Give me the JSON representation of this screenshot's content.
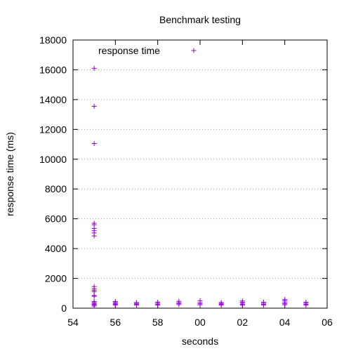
{
  "chart_data": {
    "type": "scatter",
    "title": "Benchmark testing",
    "xlabel": "seconds",
    "ylabel": "response time (ms)",
    "xlim": [
      54,
      66
    ],
    "ylim": [
      0,
      18000
    ],
    "x_ticks": [
      {
        "value": 54,
        "label": "54"
      },
      {
        "value": 56,
        "label": "56"
      },
      {
        "value": 58,
        "label": "58"
      },
      {
        "value": 60,
        "label": "00"
      },
      {
        "value": 62,
        "label": "02"
      },
      {
        "value": 64,
        "label": "04"
      },
      {
        "value": 66,
        "label": "06"
      }
    ],
    "y_ticks": [
      {
        "value": 0,
        "label": "0"
      },
      {
        "value": 2000,
        "label": "2000"
      },
      {
        "value": 4000,
        "label": "4000"
      },
      {
        "value": 6000,
        "label": "6000"
      },
      {
        "value": 8000,
        "label": "8000"
      },
      {
        "value": 10000,
        "label": "10000"
      },
      {
        "value": 12000,
        "label": "12000"
      },
      {
        "value": 14000,
        "label": "14000"
      },
      {
        "value": 16000,
        "label": "16000"
      },
      {
        "value": 18000,
        "label": "18000"
      }
    ],
    "grid": {
      "y": true,
      "x": false,
      "style": "dotted"
    },
    "legend_position": "top-left",
    "marker": "plus",
    "series": [
      {
        "name": "response time",
        "color": "#9400d3",
        "points": [
          {
            "x": 55,
            "y": 16100
          },
          {
            "x": 55,
            "y": 13550
          },
          {
            "x": 55,
            "y": 11050
          },
          {
            "x": 55,
            "y": 5700
          },
          {
            "x": 55,
            "y": 5600
          },
          {
            "x": 55,
            "y": 5350
          },
          {
            "x": 55,
            "y": 5200
          },
          {
            "x": 55,
            "y": 5050
          },
          {
            "x": 55,
            "y": 4850
          },
          {
            "x": 55,
            "y": 1450
          },
          {
            "x": 55,
            "y": 1300
          },
          {
            "x": 55,
            "y": 1200
          },
          {
            "x": 55,
            "y": 1100
          },
          {
            "x": 55,
            "y": 850
          },
          {
            "x": 55,
            "y": 800
          },
          {
            "x": 55,
            "y": 450
          },
          {
            "x": 55,
            "y": 380
          },
          {
            "x": 55,
            "y": 320
          },
          {
            "x": 55,
            "y": 260
          },
          {
            "x": 55,
            "y": 200
          },
          {
            "x": 55,
            "y": 140
          },
          {
            "x": 56,
            "y": 450
          },
          {
            "x": 56,
            "y": 380
          },
          {
            "x": 56,
            "y": 320
          },
          {
            "x": 56,
            "y": 260
          },
          {
            "x": 56,
            "y": 200
          },
          {
            "x": 57,
            "y": 380
          },
          {
            "x": 57,
            "y": 320
          },
          {
            "x": 57,
            "y": 260
          },
          {
            "x": 57,
            "y": 200
          },
          {
            "x": 58,
            "y": 400
          },
          {
            "x": 58,
            "y": 330
          },
          {
            "x": 58,
            "y": 260
          },
          {
            "x": 58,
            "y": 200
          },
          {
            "x": 59,
            "y": 460
          },
          {
            "x": 59,
            "y": 380
          },
          {
            "x": 59,
            "y": 310
          },
          {
            "x": 59,
            "y": 240
          },
          {
            "x": 60,
            "y": 500
          },
          {
            "x": 60,
            "y": 380
          },
          {
            "x": 60,
            "y": 300
          },
          {
            "x": 60,
            "y": 230
          },
          {
            "x": 61,
            "y": 380
          },
          {
            "x": 61,
            "y": 320
          },
          {
            "x": 61,
            "y": 260
          },
          {
            "x": 61,
            "y": 200
          },
          {
            "x": 62,
            "y": 480
          },
          {
            "x": 62,
            "y": 400
          },
          {
            "x": 62,
            "y": 330
          },
          {
            "x": 62,
            "y": 260
          },
          {
            "x": 62,
            "y": 200
          },
          {
            "x": 63,
            "y": 400
          },
          {
            "x": 63,
            "y": 330
          },
          {
            "x": 63,
            "y": 260
          },
          {
            "x": 63,
            "y": 200
          },
          {
            "x": 64,
            "y": 580
          },
          {
            "x": 64,
            "y": 500
          },
          {
            "x": 64,
            "y": 380
          },
          {
            "x": 64,
            "y": 300
          },
          {
            "x": 64,
            "y": 230
          },
          {
            "x": 65,
            "y": 400
          },
          {
            "x": 65,
            "y": 330
          },
          {
            "x": 65,
            "y": 260
          },
          {
            "x": 65,
            "y": 200
          }
        ]
      }
    ]
  }
}
